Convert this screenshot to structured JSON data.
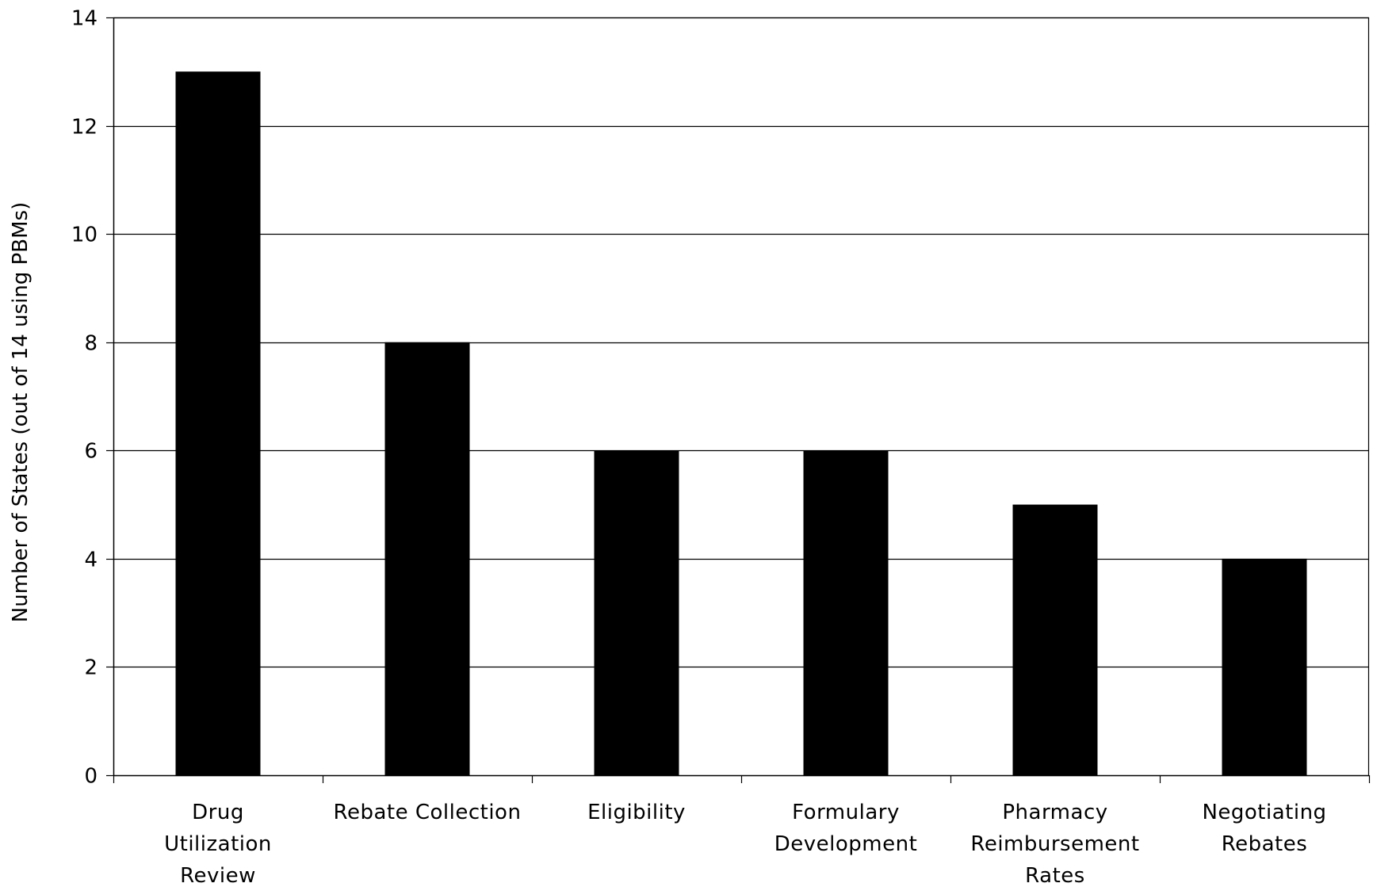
{
  "chart_data": {
    "type": "bar",
    "categories": [
      [
        "Drug",
        "Utilization",
        "Review"
      ],
      [
        "Rebate Collection"
      ],
      [
        "Eligibility"
      ],
      [
        "Formulary",
        "Development"
      ],
      [
        "Pharmacy",
        "Reimbursement",
        "Rates"
      ],
      [
        "Negotiating",
        "Rebates"
      ]
    ],
    "values": [
      13,
      8,
      6,
      6,
      5,
      4
    ],
    "ylabel": "Number of States (out of 14 using PBMs)",
    "xlabel": "",
    "ylim": [
      0,
      14
    ],
    "yticks": [
      0,
      2,
      4,
      6,
      8,
      10,
      12,
      14
    ],
    "grid": true,
    "legend": "none",
    "colors": {
      "bar": "#000000",
      "grid": "#000000",
      "background": "#ffffff"
    }
  }
}
